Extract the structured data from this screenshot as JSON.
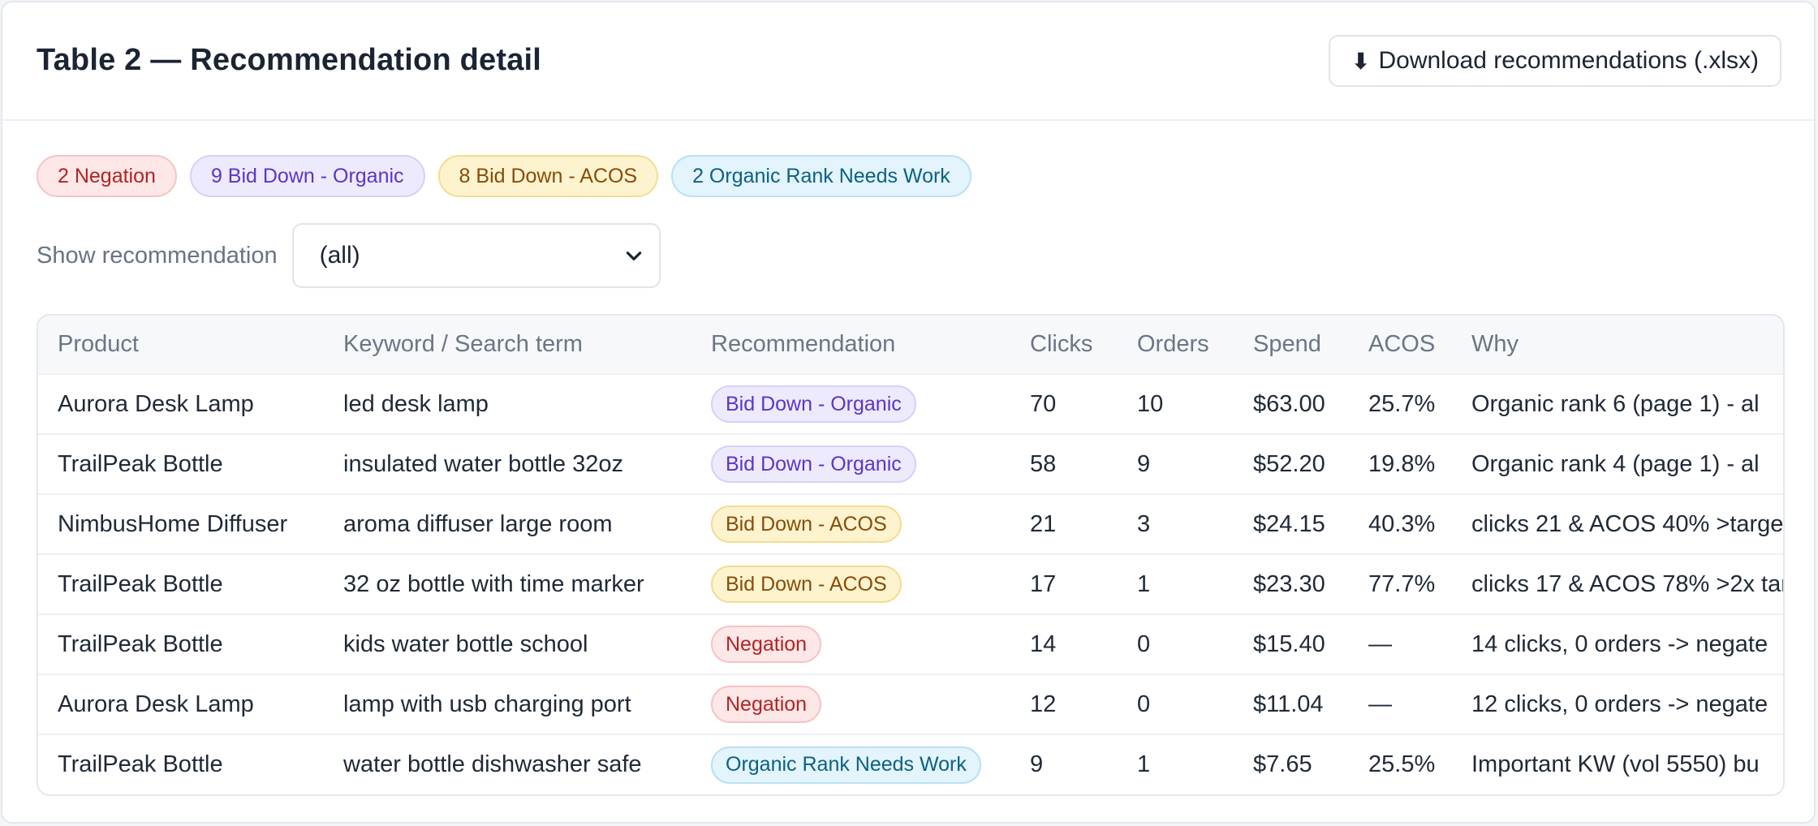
{
  "header": {
    "title": "Table 2 — Recommendation detail",
    "download_icon": "⬇",
    "download_label": "Download recommendations (.xlsx)"
  },
  "chips": [
    {
      "label": "2 Negation",
      "kind": "neg"
    },
    {
      "label": "9 Bid Down - Organic",
      "kind": "org"
    },
    {
      "label": "8 Bid Down - ACOS",
      "kind": "acos"
    },
    {
      "label": "2 Organic Rank Needs Work",
      "kind": "rank"
    }
  ],
  "filter": {
    "label": "Show recommendation",
    "selected": "(all)"
  },
  "table": {
    "columns": [
      "Product",
      "Keyword / Search term",
      "Recommendation",
      "Clicks",
      "Orders",
      "Spend",
      "ACOS",
      "Why"
    ],
    "rows": [
      {
        "product": "Aurora Desk Lamp",
        "keyword": "led desk lamp",
        "rec": "Bid Down - Organic",
        "kind": "org",
        "clicks": "70",
        "orders": "10",
        "spend": "$63.00",
        "acos": "25.7%",
        "why": "Organic rank 6 (page 1) - al"
      },
      {
        "product": "TrailPeak Bottle",
        "keyword": "insulated water bottle 32oz",
        "rec": "Bid Down - Organic",
        "kind": "org",
        "clicks": "58",
        "orders": "9",
        "spend": "$52.20",
        "acos": "19.8%",
        "why": "Organic rank 4 (page 1) - al"
      },
      {
        "product": "NimbusHome Diffuser",
        "keyword": "aroma diffuser large room",
        "rec": "Bid Down - ACOS",
        "kind": "acos",
        "clicks": "21",
        "orders": "3",
        "spend": "$24.15",
        "acos": "40.3%",
        "why": "clicks 21 & ACOS 40% >targe"
      },
      {
        "product": "TrailPeak Bottle",
        "keyword": "32 oz bottle with time marker",
        "rec": "Bid Down - ACOS",
        "kind": "acos",
        "clicks": "17",
        "orders": "1",
        "spend": "$23.30",
        "acos": "77.7%",
        "why": "clicks 17 & ACOS 78% >2x tar"
      },
      {
        "product": "TrailPeak Bottle",
        "keyword": "kids water bottle school",
        "rec": "Negation",
        "kind": "neg",
        "clicks": "14",
        "orders": "0",
        "spend": "$15.40",
        "acos": "—",
        "why": "14 clicks, 0 orders -> negate"
      },
      {
        "product": "Aurora Desk Lamp",
        "keyword": "lamp with usb charging port",
        "rec": "Negation",
        "kind": "neg",
        "clicks": "12",
        "orders": "0",
        "spend": "$11.04",
        "acos": "—",
        "why": "12 clicks, 0 orders -> negate"
      },
      {
        "product": "TrailPeak Bottle",
        "keyword": "water bottle dishwasher safe",
        "rec": "Organic Rank Needs Work",
        "kind": "rank",
        "clicks": "9",
        "orders": "1",
        "spend": "$7.65",
        "acos": "25.5%",
        "why": "Important KW (vol 5550) bu"
      }
    ]
  }
}
